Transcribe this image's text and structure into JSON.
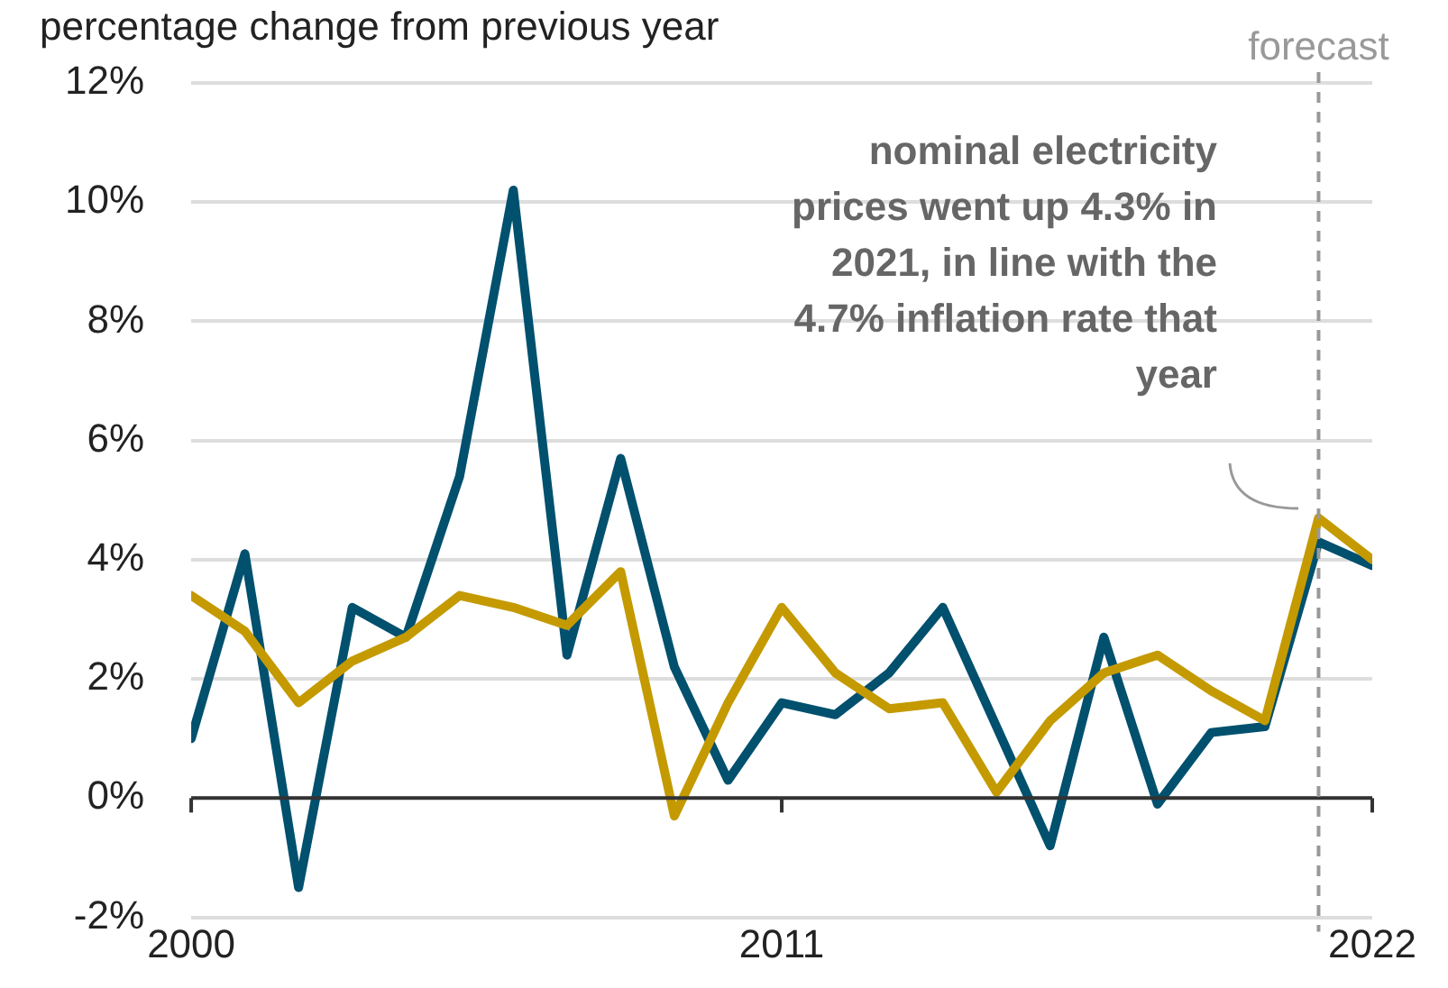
{
  "chart_data": {
    "type": "line",
    "subtitle": "percentage change from previous year",
    "x": [
      2000,
      2001,
      2002,
      2003,
      2004,
      2005,
      2006,
      2007,
      2008,
      2009,
      2010,
      2011,
      2012,
      2013,
      2014,
      2015,
      2016,
      2017,
      2018,
      2019,
      2020,
      2021,
      2022
    ],
    "series": [
      {
        "color": "#c49a00",
        "values": [
          3.4,
          2.8,
          1.6,
          2.3,
          2.7,
          3.4,
          3.2,
          2.9,
          3.8,
          -0.3,
          1.6,
          3.2,
          2.1,
          1.5,
          1.6,
          0.1,
          1.3,
          2.1,
          2.4,
          1.8,
          1.3,
          4.7,
          4.0
        ]
      },
      {
        "color": "#00506e",
        "values": [
          1.0,
          4.1,
          -1.5,
          3.2,
          2.7,
          5.4,
          10.2,
          2.4,
          5.7,
          2.2,
          0.3,
          1.6,
          1.4,
          2.1,
          3.2,
          1.2,
          -0.8,
          2.7,
          -0.1,
          1.1,
          1.2,
          4.3,
          3.9
        ]
      }
    ],
    "xlim": [
      2000,
      2022
    ],
    "xticks": [
      2000,
      2011,
      2022
    ],
    "ylim": [
      -2,
      12
    ],
    "yticks": [
      {
        "value": -2,
        "label": "-2%"
      },
      {
        "value": 0,
        "label": "0%"
      },
      {
        "value": 2,
        "label": "2%"
      },
      {
        "value": 4,
        "label": "4%"
      },
      {
        "value": 6,
        "label": "6%"
      },
      {
        "value": 8,
        "label": "8%"
      },
      {
        "value": 10,
        "label": "10%"
      },
      {
        "value": 12,
        "label": "12%"
      }
    ],
    "grid": "y",
    "marker": "none",
    "line_style": "solid",
    "ref_lines": [
      {
        "axis": "x",
        "value": 2021,
        "label": "forecast",
        "color": "#999999",
        "line_style": "dashed"
      }
    ],
    "annotations": [
      "nominal electricity prices went up 4.3% in 2021, in line with the 4.7% inflation rate that year"
    ]
  }
}
